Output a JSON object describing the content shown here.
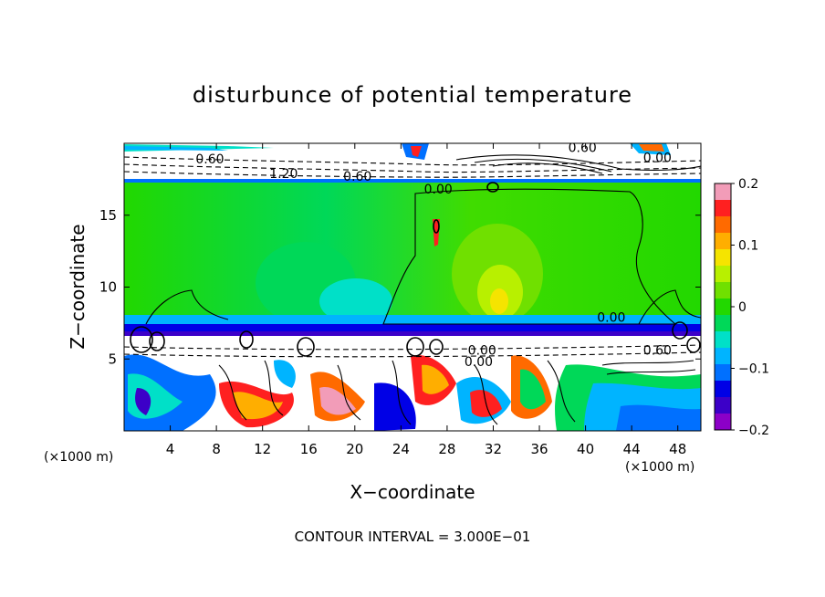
{
  "chart_data": {
    "type": "heatmap",
    "title": "disturbunce of potential temperature",
    "xlabel": "X−coordinate",
    "ylabel": "Z−coordinate",
    "x_unit_left": "(×1000 m)",
    "x_unit_right": "(×1000 m)",
    "xlim": [
      0,
      50
    ],
    "ylim": [
      0,
      20
    ],
    "x_ticks": [
      4,
      8,
      12,
      16,
      20,
      24,
      28,
      32,
      36,
      40,
      44,
      48
    ],
    "y_ticks": [
      5,
      10,
      15
    ],
    "colorbar": {
      "range": [
        -0.2,
        0.2
      ],
      "ticks": [
        "0.2",
        "0.1",
        "0",
        "−0.1",
        "−0.2"
      ],
      "colors": [
        "#f29cb8",
        "#ff2020",
        "#ff6a00",
        "#ffae00",
        "#f5e400",
        "#b8f000",
        "#70e000",
        "#22d800",
        "#00d858",
        "#00e0c8",
        "#00b4ff",
        "#0070ff",
        "#0000e6",
        "#3c00c8",
        "#8c00c8"
      ]
    },
    "contour_labels": [
      {
        "text": "0.60",
        "x": 6.2,
        "y": 18.6
      },
      {
        "text": "1.20",
        "x": 12.6,
        "y": 17.6
      },
      {
        "text": "0.60",
        "x": 19.0,
        "y": 17.4
      },
      {
        "text": "0.60",
        "x": 38.5,
        "y": 19.4
      },
      {
        "text": "0.00",
        "x": 45.0,
        "y": 18.7
      },
      {
        "text": "0.00",
        "x": 26.0,
        "y": 16.5
      },
      {
        "text": "0.00",
        "x": 41.0,
        "y": 7.6
      },
      {
        "text": "0.00",
        "x": 29.5,
        "y": 4.5
      },
      {
        "text": "0.60",
        "x": 45.0,
        "y": 5.3
      },
      {
        "text": "0.00",
        "x": 29.8,
        "y": 5.3
      }
    ],
    "footer": "CONTOUR INTERVAL = 3.000E−01"
  }
}
